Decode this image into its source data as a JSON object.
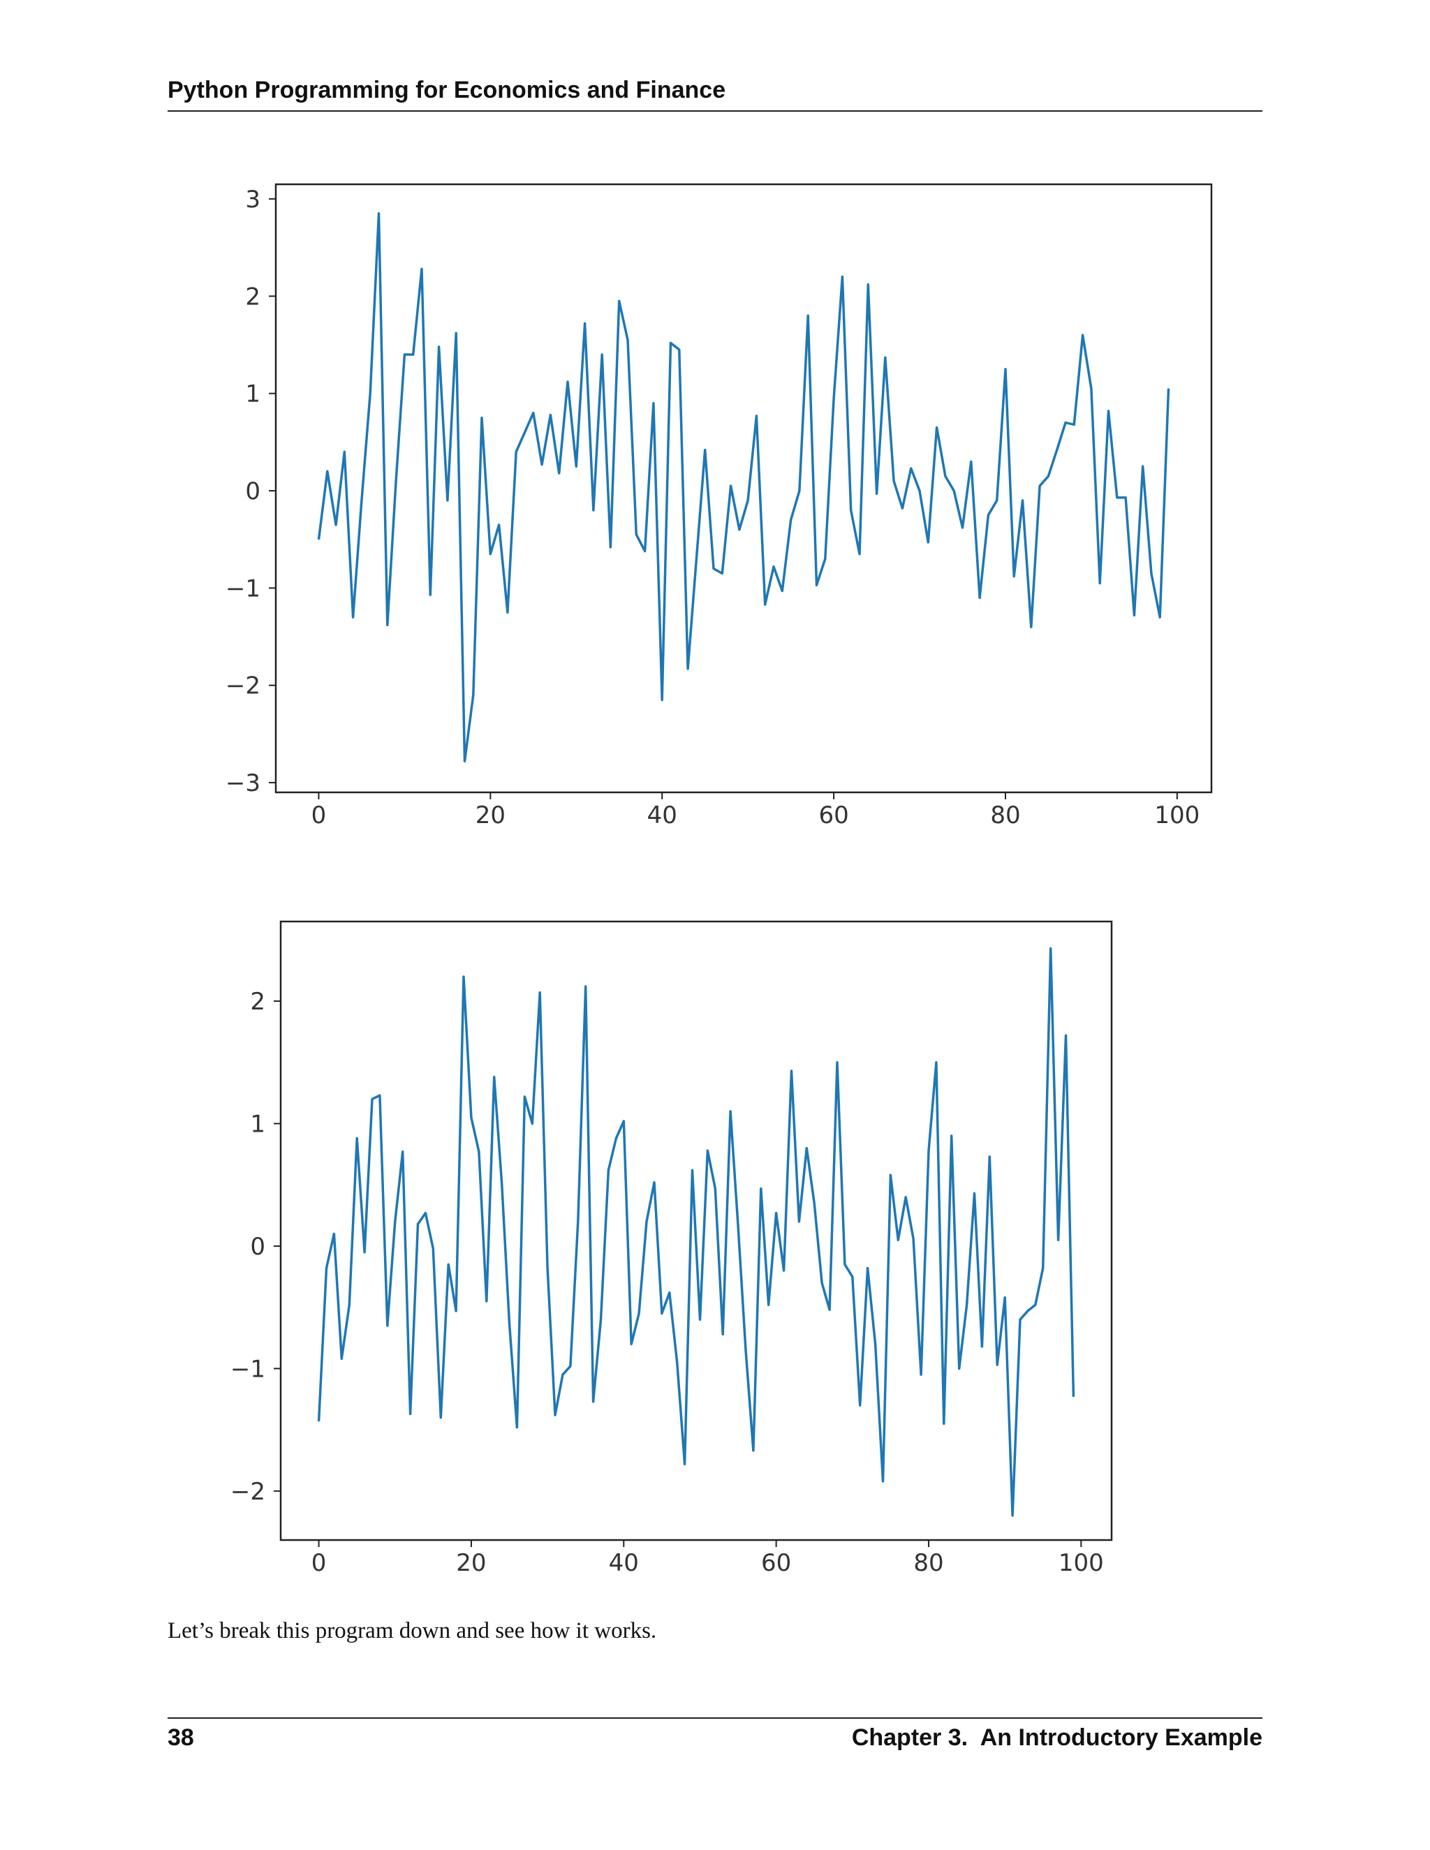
{
  "page": {
    "running_header": "Python Programming for Economics and Finance",
    "body_text": "Let’s break this program down and see how it works.",
    "footer": {
      "page_number": "38",
      "chapter_title": "Chapter 3.  An Introductory Example"
    }
  },
  "colors": {
    "line": "#1f77b4",
    "axes": "#222222",
    "text": "#111111"
  },
  "chart_data": [
    {
      "type": "line",
      "title": "",
      "xlabel": "",
      "ylabel": "",
      "xlim": [
        -5,
        104
      ],
      "ylim": [
        -3.1,
        3.15
      ],
      "xticks": [
        0,
        20,
        40,
        60,
        80,
        100
      ],
      "yticks": [
        -3,
        -2,
        -1,
        0,
        1,
        2,
        3
      ],
      "ytick_labels": [
        "−3",
        "−2",
        "−1",
        "0",
        "1",
        "2",
        "3"
      ],
      "grid": false,
      "series": [
        {
          "values": [
            -0.5,
            0.2,
            -0.35,
            0.4,
            -1.3,
            -0.1,
            1.0,
            2.85,
            -1.38,
            0.1,
            1.4,
            1.4,
            2.28,
            -1.07,
            1.48,
            -0.1,
            1.62,
            -2.78,
            -2.1,
            0.75,
            -0.65,
            -0.35,
            -1.25,
            0.4,
            0.6,
            0.8,
            0.27,
            0.78,
            0.18,
            1.12,
            0.25,
            1.72,
            -0.2,
            1.4,
            -0.58,
            1.95,
            1.55,
            -0.45,
            -0.62,
            0.9,
            -2.15,
            1.52,
            1.45,
            -1.83,
            -0.7,
            0.42,
            -0.8,
            -0.85,
            0.05,
            -0.4,
            -0.1,
            0.77,
            -1.17,
            -0.78,
            -1.03,
            -0.3,
            0.0,
            1.8,
            -0.97,
            -0.7,
            0.95,
            2.2,
            -0.2,
            -0.65,
            2.12,
            -0.03,
            1.37,
            0.1,
            -0.18,
            0.23,
            0.0,
            -0.53,
            0.65,
            0.15,
            0.0,
            -0.38,
            0.3,
            -1.1,
            -0.25,
            -0.1,
            1.25,
            -0.88,
            -0.1,
            -1.4,
            0.05,
            0.15,
            0.42,
            0.7,
            0.68,
            1.6,
            1.05,
            -0.95,
            0.82,
            -0.07,
            -0.07,
            -1.28,
            0.25,
            -0.85,
            -1.3,
            1.05
          ]
        }
      ]
    },
    {
      "type": "line",
      "title": "",
      "xlabel": "",
      "ylabel": "",
      "xlim": [
        -5,
        104
      ],
      "ylim": [
        -2.4,
        2.65
      ],
      "xticks": [
        0,
        20,
        40,
        60,
        80,
        100
      ],
      "yticks": [
        -2,
        -1,
        0,
        1,
        2
      ],
      "ytick_labels": [
        "−2",
        "−1",
        "0",
        "1",
        "2"
      ],
      "grid": false,
      "series": [
        {
          "values": [
            -1.43,
            -0.18,
            0.1,
            -0.92,
            -0.48,
            0.88,
            -0.05,
            1.2,
            1.23,
            -0.65,
            0.2,
            0.77,
            -1.37,
            0.18,
            0.27,
            -0.02,
            -1.4,
            -0.15,
            -0.53,
            2.2,
            1.05,
            0.77,
            -0.45,
            1.38,
            0.52,
            -0.63,
            -1.48,
            1.22,
            1.0,
            2.07,
            -0.18,
            -1.38,
            -1.05,
            -0.98,
            0.2,
            2.12,
            -1.27,
            -0.6,
            0.62,
            0.88,
            1.02,
            -0.8,
            -0.55,
            0.2,
            0.52,
            -0.55,
            -0.38,
            -0.95,
            -1.78,
            0.62,
            -0.6,
            0.78,
            0.47,
            -0.72,
            1.1,
            0.17,
            -0.85,
            -1.67,
            0.47,
            -0.48,
            0.27,
            -0.2,
            1.43,
            0.2,
            0.8,
            0.35,
            -0.3,
            -0.52,
            1.5,
            -0.15,
            -0.25,
            -1.3,
            -0.18,
            -0.8,
            -1.92,
            0.58,
            0.05,
            0.4,
            0.06,
            -1.05,
            0.78,
            1.5,
            -1.45,
            0.9,
            -1.0,
            -0.48,
            0.43,
            -0.82,
            0.73,
            -0.97,
            -0.42,
            -2.2,
            -0.6,
            -0.53,
            -0.48,
            -0.18,
            2.43,
            0.05,
            1.72,
            -1.23
          ]
        }
      ]
    }
  ]
}
